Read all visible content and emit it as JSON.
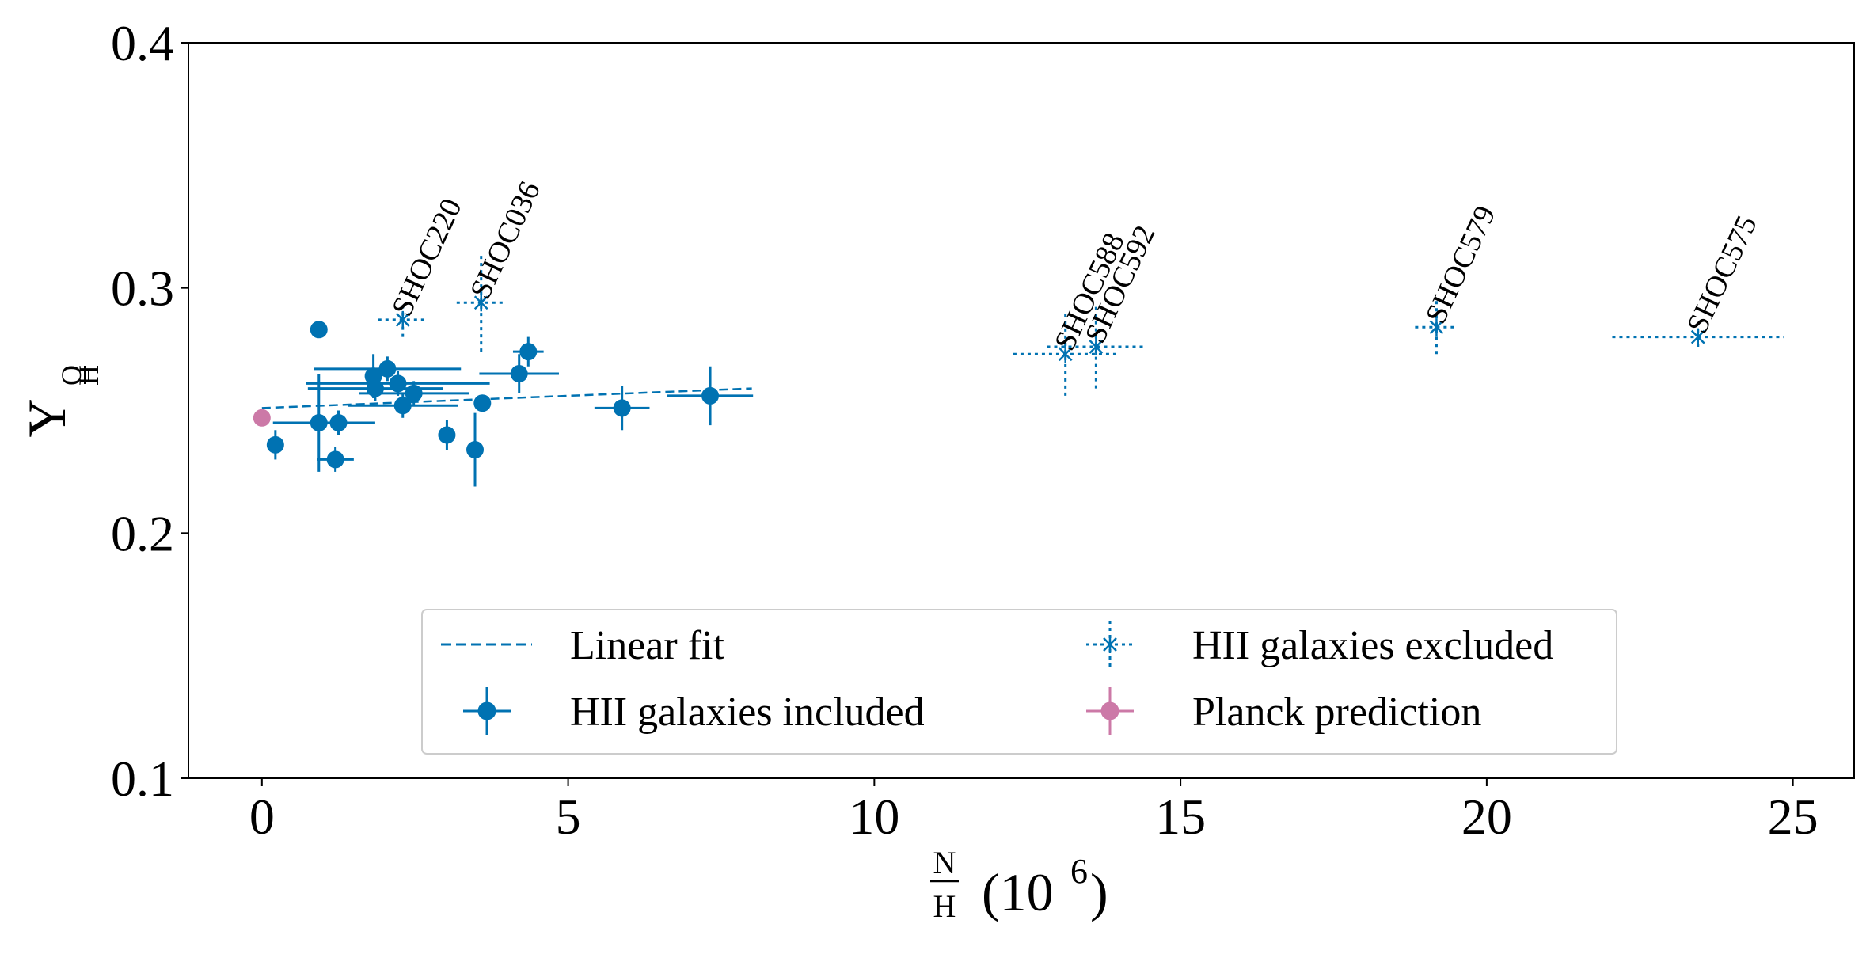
{
  "colors": {
    "included": "#0072b2",
    "excluded": "#0072b2",
    "planck": "#cc79a7",
    "fit": "#0072b2",
    "axis": "#000000",
    "legend_border": "#cccccc"
  },
  "chart_data": {
    "type": "scatter",
    "title": "",
    "xlabel": {
      "fraction_num": "N",
      "fraction_den": "H",
      "suffix": "(10",
      "exponent": "6",
      "close": ")"
    },
    "ylabel": {
      "main": "Y",
      "sub_num": "O",
      "sub_den": "H"
    },
    "xlim": [
      -1.2,
      26.0
    ],
    "ylim": [
      0.1,
      0.4
    ],
    "xticks": [
      0,
      5,
      10,
      15,
      20,
      25
    ],
    "xtick_labels": [
      "0",
      "5",
      "10",
      "15",
      "20",
      "25"
    ],
    "yticks": [
      0.1,
      0.2,
      0.3,
      0.4
    ],
    "ytick_labels": [
      "0.1",
      "0.2",
      "0.3",
      "0.4"
    ],
    "grid": false,
    "legend_position": "lower-center",
    "legend": {
      "fit": "Linear fit",
      "excluded": "HII galaxies excluded",
      "included": "HII galaxies included",
      "planck": "Planck prediction"
    },
    "linear_fit": {
      "x": [
        0.0,
        8.0
      ],
      "y": [
        0.251,
        0.259
      ]
    },
    "series": [
      {
        "name": "HII galaxies included",
        "points": [
          {
            "x": 0.22,
            "y": 0.236,
            "xerr": 0.05,
            "yerr": 0.006
          },
          {
            "x": 0.93,
            "y": 0.283,
            "xerr": 0.0,
            "yerr": 0.0
          },
          {
            "x": 0.93,
            "y": 0.245,
            "xerr": 0.75,
            "yerr": 0.02
          },
          {
            "x": 1.25,
            "y": 0.245,
            "xerr": 0.6,
            "yerr": 0.005
          },
          {
            "x": 1.2,
            "y": 0.23,
            "xerr": 0.3,
            "yerr": 0.005
          },
          {
            "x": 1.82,
            "y": 0.264,
            "xerr": 0.1,
            "yerr": 0.009
          },
          {
            "x": 1.85,
            "y": 0.259,
            "xerr": 1.1,
            "yerr": 0.005
          },
          {
            "x": 2.05,
            "y": 0.267,
            "xerr": 1.2,
            "yerr": 0.005
          },
          {
            "x": 2.22,
            "y": 0.261,
            "xerr": 1.5,
            "yerr": 0.005
          },
          {
            "x": 2.3,
            "y": 0.252,
            "xerr": 0.9,
            "yerr": 0.005
          },
          {
            "x": 2.48,
            "y": 0.257,
            "xerr": 0.9,
            "yerr": 0.005
          },
          {
            "x": 3.02,
            "y": 0.24,
            "xerr": 0.1,
            "yerr": 0.006
          },
          {
            "x": 3.48,
            "y": 0.234,
            "xerr": 0.0,
            "yerr": 0.015
          },
          {
            "x": 3.6,
            "y": 0.253,
            "xerr": 0.1,
            "yerr": 0.003
          },
          {
            "x": 4.2,
            "y": 0.265,
            "xerr": 0.65,
            "yerr": 0.008
          },
          {
            "x": 4.35,
            "y": 0.274,
            "xerr": 0.25,
            "yerr": 0.006
          },
          {
            "x": 5.88,
            "y": 0.251,
            "xerr": 0.45,
            "yerr": 0.009
          },
          {
            "x": 7.32,
            "y": 0.256,
            "xerr": 0.7,
            "yerr": 0.012
          }
        ]
      },
      {
        "name": "HII galaxies excluded",
        "points": [
          {
            "x": 2.3,
            "y": 0.287,
            "xerr": 0.4,
            "yerr": 0.007,
            "label": "SHOC220"
          },
          {
            "x": 3.58,
            "y": 0.294,
            "xerr": 0.4,
            "yerr": 0.02,
            "label": "SHOC036"
          },
          {
            "x": 13.12,
            "y": 0.273,
            "xerr": 0.85,
            "yerr": 0.017,
            "label": "SHOC588"
          },
          {
            "x": 13.62,
            "y": 0.276,
            "xerr": 0.8,
            "yerr": 0.017,
            "label": "SHOC592"
          },
          {
            "x": 19.18,
            "y": 0.284,
            "xerr": 0.35,
            "yerr": 0.011,
            "label": "SHOC579"
          },
          {
            "x": 23.45,
            "y": 0.28,
            "xerr": 1.4,
            "yerr": 0.004,
            "label": "SHOC575"
          }
        ]
      },
      {
        "name": "Planck prediction",
        "points": [
          {
            "x": 0.0,
            "y": 0.247,
            "xerr": 0.0,
            "yerr": 0.0
          }
        ]
      }
    ]
  }
}
